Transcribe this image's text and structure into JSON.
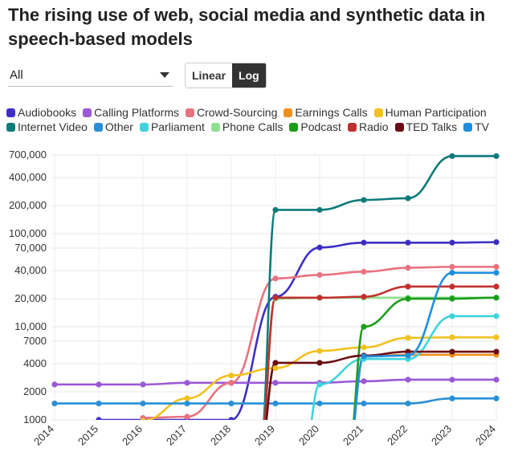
{
  "title": "The rising use of web, social media and synthetic data in speech-based models",
  "controls": {
    "filter_value": "All",
    "scale_options": [
      "Linear",
      "Log"
    ],
    "active_scale": "Log"
  },
  "chart_data": {
    "type": "line",
    "y_scale": "log",
    "ylim": [
      1000,
      700000
    ],
    "y_ticks": [
      1000,
      2000,
      4000,
      7000,
      10000,
      20000,
      40000,
      70000,
      100000,
      200000,
      400000,
      700000
    ],
    "y_tick_labels": [
      "1000",
      "2000",
      "4000",
      "7000",
      "10,000",
      "20,000",
      "40,000",
      "70,000",
      "100,000",
      "200,000",
      "400,000",
      "700,000"
    ],
    "x_ticks": [
      "2014",
      "2015",
      "2016",
      "2017",
      "2018",
      "2019",
      "2020",
      "2021",
      "2022",
      "2023",
      "2024"
    ],
    "grid": true,
    "legend_position": "top",
    "series": [
      {
        "name": "Audiobooks",
        "color": "#3d2fc4",
        "points": [
          [
            2015,
            1000
          ],
          [
            2016,
            1000
          ],
          [
            2017,
            1000
          ],
          [
            2018,
            1000
          ],
          [
            2019,
            21000
          ],
          [
            2020,
            71000
          ],
          [
            2021,
            80000
          ],
          [
            2022,
            80000
          ],
          [
            2023,
            80000
          ],
          [
            2024,
            81000
          ]
        ]
      },
      {
        "name": "Calling Platforms",
        "color": "#9a5ad6",
        "points": [
          [
            2014,
            2400
          ],
          [
            2015,
            2400
          ],
          [
            2016,
            2400
          ],
          [
            2017,
            2500
          ],
          [
            2018,
            2500
          ],
          [
            2019,
            2500
          ],
          [
            2020,
            2500
          ],
          [
            2021,
            2600
          ],
          [
            2022,
            2700
          ],
          [
            2023,
            2700
          ],
          [
            2024,
            2700
          ]
        ]
      },
      {
        "name": "Crowd-Sourcing",
        "color": "#e8727f",
        "points": [
          [
            2016,
            1050
          ],
          [
            2017,
            1080
          ],
          [
            2018,
            2500
          ],
          [
            2019,
            33000
          ],
          [
            2020,
            36000
          ],
          [
            2021,
            39000
          ],
          [
            2022,
            43000
          ],
          [
            2023,
            44000
          ],
          [
            2024,
            44000
          ]
        ]
      },
      {
        "name": "Earnings Calls",
        "color": "#f28e1c",
        "points": [
          [
            2021,
            4800
          ],
          [
            2022,
            5000
          ],
          [
            2023,
            5000
          ],
          [
            2024,
            5000
          ]
        ]
      },
      {
        "name": "Human Participation",
        "color": "#f2c11d",
        "points": [
          [
            2016,
            980
          ],
          [
            2017,
            1700
          ],
          [
            2018,
            3000
          ],
          [
            2019,
            3600
          ],
          [
            2020,
            5500
          ],
          [
            2021,
            6000
          ],
          [
            2022,
            7600
          ],
          [
            2023,
            7700
          ],
          [
            2024,
            7700
          ]
        ]
      },
      {
        "name": "Internet Video",
        "color": "#0e7b7b",
        "points": [
          [
            2019,
            180000
          ],
          [
            2020,
            180000
          ],
          [
            2021,
            230000
          ],
          [
            2022,
            240000
          ],
          [
            2023,
            680000
          ],
          [
            2024,
            680000
          ]
        ]
      },
      {
        "name": "Other",
        "color": "#2a8fd6",
        "points": [
          [
            2014,
            1500
          ],
          [
            2015,
            1500
          ],
          [
            2016,
            1500
          ],
          [
            2017,
            1500
          ],
          [
            2018,
            1500
          ],
          [
            2019,
            1500
          ],
          [
            2020,
            1500
          ],
          [
            2021,
            1500
          ],
          [
            2022,
            1500
          ],
          [
            2023,
            1700
          ],
          [
            2024,
            1700
          ]
        ]
      },
      {
        "name": "Parliament",
        "color": "#3fd4dc",
        "points": [
          [
            2020,
            2400
          ],
          [
            2021,
            4500
          ],
          [
            2022,
            4500
          ],
          [
            2023,
            13000
          ],
          [
            2024,
            13000
          ]
        ]
      },
      {
        "name": "Phone Calls",
        "color": "#8ee08e",
        "points": [
          [
            2019,
            20000
          ],
          [
            2020,
            20500
          ],
          [
            2021,
            20500
          ],
          [
            2022,
            20500
          ],
          [
            2023,
            20500
          ],
          [
            2024,
            20500
          ]
        ]
      },
      {
        "name": "Podcast",
        "color": "#1a9e1a",
        "points": [
          [
            2021,
            10000
          ],
          [
            2022,
            20000
          ],
          [
            2023,
            20000
          ],
          [
            2024,
            20500
          ]
        ]
      },
      {
        "name": "Radio",
        "color": "#c0302e",
        "points": [
          [
            2019,
            20500
          ],
          [
            2020,
            20500
          ],
          [
            2021,
            21000
          ],
          [
            2022,
            27000
          ],
          [
            2023,
            27000
          ],
          [
            2024,
            27000
          ]
        ]
      },
      {
        "name": "TED Talks",
        "color": "#6b0d12",
        "points": [
          [
            2019,
            4100
          ],
          [
            2020,
            4100
          ],
          [
            2021,
            4900
          ],
          [
            2022,
            5400
          ],
          [
            2023,
            5400
          ],
          [
            2024,
            5400
          ]
        ]
      },
      {
        "name": "TV",
        "color": "#1e8fe0",
        "points": [
          [
            2021,
            4800
          ],
          [
            2022,
            4900
          ],
          [
            2023,
            38000
          ],
          [
            2024,
            38000
          ]
        ]
      }
    ]
  }
}
